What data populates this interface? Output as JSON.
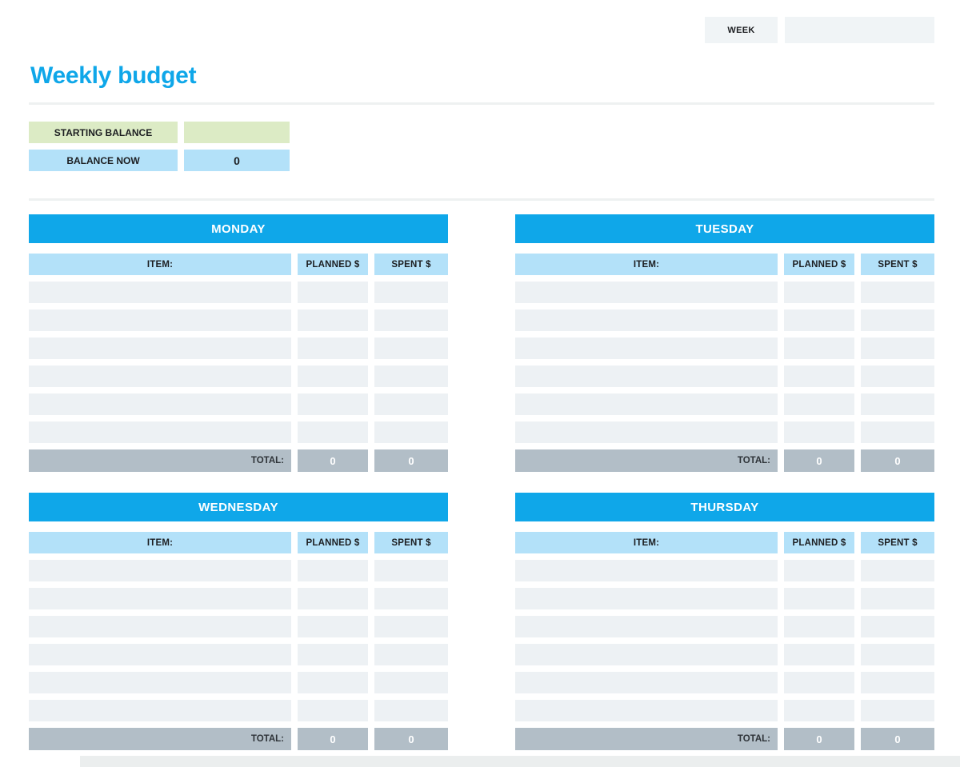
{
  "header": {
    "week_label": "WEEK",
    "week_value": "",
    "title": "Weekly budget"
  },
  "balance": {
    "starting_label": "STARTING BALANCE",
    "starting_value": "",
    "now_label": "BALANCE NOW",
    "now_value": "0"
  },
  "tables": {
    "row_count": 6,
    "columns": {
      "item": "ITEM:",
      "planned": "PLANNED $",
      "spent": "SPENT $"
    },
    "total_label": "TOTAL:",
    "days": [
      {
        "name": "MONDAY",
        "total_planned": "0",
        "total_spent": "0"
      },
      {
        "name": "TUESDAY",
        "total_planned": "0",
        "total_spent": "0"
      },
      {
        "name": "WEDNESDAY",
        "total_planned": "0",
        "total_spent": "0"
      },
      {
        "name": "THURSDAY",
        "total_planned": "0",
        "total_spent": "0"
      }
    ]
  },
  "colors": {
    "accent_blue": "#0fa7e9",
    "light_blue": "#b3e1f9",
    "green": "#dcebc5",
    "row_gray": "#edf1f4",
    "total_gray": "#b2bec7",
    "box_gray": "#f0f4f6",
    "divider": "#eef1f1",
    "bottom_strip": "#ebeeee",
    "text_dark": "#1c1e21",
    "total_text": "#2e3338"
  }
}
